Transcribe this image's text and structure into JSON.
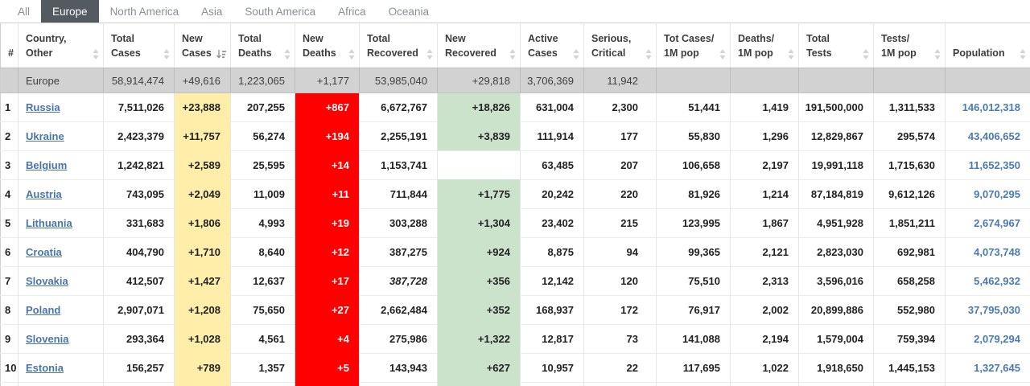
{
  "tabs": {
    "items": [
      {
        "label": "All",
        "active": false
      },
      {
        "label": "Europe",
        "active": true
      },
      {
        "label": "North America",
        "active": false
      },
      {
        "label": "Asia",
        "active": false
      },
      {
        "label": "South America",
        "active": false
      },
      {
        "label": "Africa",
        "active": false
      },
      {
        "label": "Oceania",
        "active": false
      }
    ]
  },
  "colors": {
    "active_tab_bg": "#545a60",
    "new_cases_bg": "#ffeeaa",
    "new_deaths_bg": "#ff0000",
    "new_recovered_bg": "#cbe2cb",
    "totals_row_bg": "#d2d2d2",
    "country_link": "#4a74ae",
    "population_link": "#4a7ab5"
  },
  "table": {
    "columns": [
      {
        "id": "rank",
        "line1": "#",
        "line2": "",
        "sort": "none"
      },
      {
        "id": "country",
        "line1": "Country,",
        "line2": "Other",
        "sort": "unsorted"
      },
      {
        "id": "total_cases",
        "line1": "Total",
        "line2": "Cases",
        "sort": "unsorted"
      },
      {
        "id": "new_cases",
        "line1": "New",
        "line2": "Cases",
        "sort": "desc"
      },
      {
        "id": "total_deaths",
        "line1": "Total",
        "line2": "Deaths",
        "sort": "unsorted"
      },
      {
        "id": "new_deaths",
        "line1": "New",
        "line2": "Deaths",
        "sort": "unsorted"
      },
      {
        "id": "total_recovered",
        "line1": "Total",
        "line2": "Recovered",
        "sort": "unsorted"
      },
      {
        "id": "new_recovered",
        "line1": "New",
        "line2": "Recovered",
        "sort": "unsorted"
      },
      {
        "id": "active_cases",
        "line1": "Active",
        "line2": "Cases",
        "sort": "unsorted"
      },
      {
        "id": "serious_critical",
        "line1": "Serious,",
        "line2": "Critical",
        "sort": "unsorted"
      },
      {
        "id": "cases_per_1m",
        "line1": "Tot Cases/",
        "line2": "1M pop",
        "sort": "unsorted"
      },
      {
        "id": "deaths_per_1m",
        "line1": "Deaths/",
        "line2": "1M pop",
        "sort": "unsorted"
      },
      {
        "id": "total_tests",
        "line1": "Total",
        "line2": "Tests",
        "sort": "unsorted"
      },
      {
        "id": "tests_per_1m",
        "line1": "Tests/",
        "line2": "1M pop",
        "sort": "unsorted"
      },
      {
        "id": "population",
        "line1": "",
        "line2": "Population",
        "sort": "unsorted"
      }
    ],
    "totals": {
      "region": "Europe",
      "total_cases": "58,914,474",
      "new_cases": "+49,616",
      "total_deaths": "1,223,065",
      "new_deaths": "+1,177",
      "total_recovered": "53,985,040",
      "new_recovered": "+29,818",
      "active_cases": "3,706,369",
      "serious_critical": "11,942",
      "cases_per_1m": "",
      "deaths_per_1m": "",
      "total_tests": "",
      "tests_per_1m": "",
      "population": ""
    },
    "rows": [
      {
        "rank": "1",
        "country": "Russia",
        "total_cases": "7,511,026",
        "new_cases": "+23,888",
        "total_deaths": "207,255",
        "new_deaths": "+867",
        "total_recovered": "6,672,767",
        "total_recovered_estimated": false,
        "new_recovered": "+18,826",
        "active_cases": "631,004",
        "serious_critical": "2,300",
        "cases_per_1m": "51,441",
        "deaths_per_1m": "1,419",
        "total_tests": "191,500,000",
        "tests_per_1m": "1,311,533",
        "population": "146,012,318"
      },
      {
        "rank": "2",
        "country": "Ukraine",
        "total_cases": "2,423,379",
        "new_cases": "+11,757",
        "total_deaths": "56,274",
        "new_deaths": "+194",
        "total_recovered": "2,255,191",
        "total_recovered_estimated": false,
        "new_recovered": "+3,839",
        "active_cases": "111,914",
        "serious_critical": "177",
        "cases_per_1m": "55,830",
        "deaths_per_1m": "1,296",
        "total_tests": "12,829,867",
        "tests_per_1m": "295,574",
        "population": "43,406,652"
      },
      {
        "rank": "3",
        "country": "Belgium",
        "total_cases": "1,242,821",
        "new_cases": "+2,589",
        "total_deaths": "25,595",
        "new_deaths": "+14",
        "total_recovered": "1,153,741",
        "total_recovered_estimated": false,
        "new_recovered": "",
        "active_cases": "63,485",
        "serious_critical": "207",
        "cases_per_1m": "106,658",
        "deaths_per_1m": "2,197",
        "total_tests": "19,991,118",
        "tests_per_1m": "1,715,630",
        "population": "11,652,350"
      },
      {
        "rank": "4",
        "country": "Austria",
        "total_cases": "743,095",
        "new_cases": "+2,049",
        "total_deaths": "11,009",
        "new_deaths": "+11",
        "total_recovered": "711,844",
        "total_recovered_estimated": false,
        "new_recovered": "+1,775",
        "active_cases": "20,242",
        "serious_critical": "220",
        "cases_per_1m": "81,926",
        "deaths_per_1m": "1,214",
        "total_tests": "87,184,819",
        "tests_per_1m": "9,612,126",
        "population": "9,070,295"
      },
      {
        "rank": "5",
        "country": "Lithuania",
        "total_cases": "331,683",
        "new_cases": "+1,806",
        "total_deaths": "4,993",
        "new_deaths": "+19",
        "total_recovered": "303,288",
        "total_recovered_estimated": false,
        "new_recovered": "+1,304",
        "active_cases": "23,402",
        "serious_critical": "215",
        "cases_per_1m": "123,995",
        "deaths_per_1m": "1,867",
        "total_tests": "4,951,928",
        "tests_per_1m": "1,851,211",
        "population": "2,674,967"
      },
      {
        "rank": "6",
        "country": "Croatia",
        "total_cases": "404,790",
        "new_cases": "+1,710",
        "total_deaths": "8,640",
        "new_deaths": "+12",
        "total_recovered": "387,275",
        "total_recovered_estimated": false,
        "new_recovered": "+924",
        "active_cases": "8,875",
        "serious_critical": "94",
        "cases_per_1m": "99,365",
        "deaths_per_1m": "2,121",
        "total_tests": "2,823,030",
        "tests_per_1m": "692,981",
        "population": "4,073,748"
      },
      {
        "rank": "7",
        "country": "Slovakia",
        "total_cases": "412,507",
        "new_cases": "+1,427",
        "total_deaths": "12,637",
        "new_deaths": "+17",
        "total_recovered": "387,728",
        "total_recovered_estimated": true,
        "new_recovered": "+356",
        "active_cases": "12,142",
        "serious_critical": "120",
        "cases_per_1m": "75,510",
        "deaths_per_1m": "2,313",
        "total_tests": "3,596,016",
        "tests_per_1m": "658,258",
        "population": "5,462,932"
      },
      {
        "rank": "8",
        "country": "Poland",
        "total_cases": "2,907,071",
        "new_cases": "+1,208",
        "total_deaths": "75,650",
        "new_deaths": "+27",
        "total_recovered": "2,662,484",
        "total_recovered_estimated": false,
        "new_recovered": "+352",
        "active_cases": "168,937",
        "serious_critical": "172",
        "cases_per_1m": "76,917",
        "deaths_per_1m": "2,002",
        "total_tests": "20,899,886",
        "tests_per_1m": "552,980",
        "population": "37,795,030"
      },
      {
        "rank": "9",
        "country": "Slovenia",
        "total_cases": "293,364",
        "new_cases": "+1,028",
        "total_deaths": "4,561",
        "new_deaths": "+4",
        "total_recovered": "275,986",
        "total_recovered_estimated": false,
        "new_recovered": "+1,322",
        "active_cases": "12,817",
        "serious_critical": "73",
        "cases_per_1m": "141,088",
        "deaths_per_1m": "2,194",
        "total_tests": "1,579,004",
        "tests_per_1m": "759,394",
        "population": "2,079,294"
      },
      {
        "rank": "10",
        "country": "Estonia",
        "total_cases": "156,257",
        "new_cases": "+789",
        "total_deaths": "1,357",
        "new_deaths": "+5",
        "total_recovered": "143,943",
        "total_recovered_estimated": false,
        "new_recovered": "+627",
        "active_cases": "10,957",
        "serious_critical": "22",
        "cases_per_1m": "117,695",
        "deaths_per_1m": "1,022",
        "total_tests": "1,918,650",
        "tests_per_1m": "1,445,153",
        "population": "1,327,645"
      }
    ]
  }
}
